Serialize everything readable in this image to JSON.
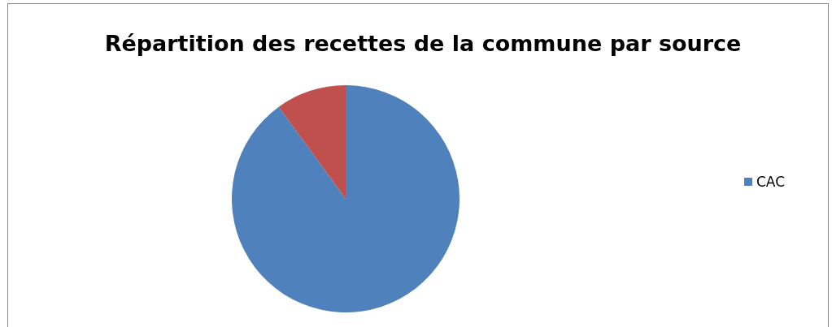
{
  "chart_data": {
    "type": "pie",
    "title": "Répartition des recettes de la commune par source",
    "categories": [
      "CAC",
      null
    ],
    "values": [
      90,
      10
    ],
    "colors": [
      "#4f81bd",
      "#c0504d"
    ],
    "legend": "right"
  }
}
